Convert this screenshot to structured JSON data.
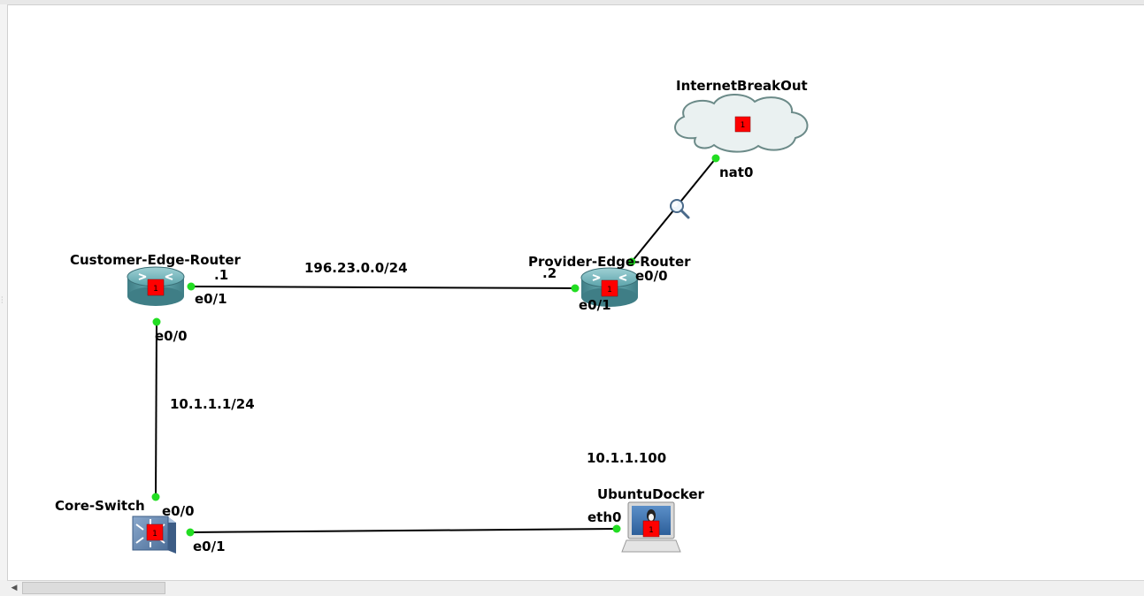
{
  "topology": {
    "nodes": {
      "customer_edge_router": {
        "name": "Customer-Edge-Router",
        "badge": "1"
      },
      "provider_edge_router": {
        "name": "Provider-Edge-Router",
        "badge": "1"
      },
      "internet_breakout": {
        "name": "InternetBreakOut",
        "badge": "1"
      },
      "core_switch": {
        "name": "Core-Switch",
        "badge": "1"
      },
      "ubuntu_docker": {
        "name": "UbuntuDocker",
        "badge": "1"
      }
    },
    "ports": {
      "ce_e0_1": "e0/1",
      "ce_e0_0": "e0/0",
      "pe_e0_1": "e0/1",
      "pe_e0_0": "e0/0",
      "cloud_nat0": "nat0",
      "sw_e0_0": "e0/0",
      "sw_e0_1": "e0/1",
      "ubuntu_eth0": "eth0"
    },
    "annotations": {
      "wan_subnet": "196.23.0.0/24",
      "ce_host": ".1",
      "pe_host": ".2",
      "lan_subnet": "10.1.1.1/24",
      "ubuntu_ip": "10.1.1.100"
    }
  },
  "colors": {
    "link": "#000000",
    "port_up": "#22dd22",
    "badge": "#ff0000",
    "router_body": "#4a9098",
    "cloud_fill": "#e8f0f0",
    "cloud_stroke": "#6b8a88"
  },
  "icons": {
    "capture": "magnifier-icon"
  }
}
